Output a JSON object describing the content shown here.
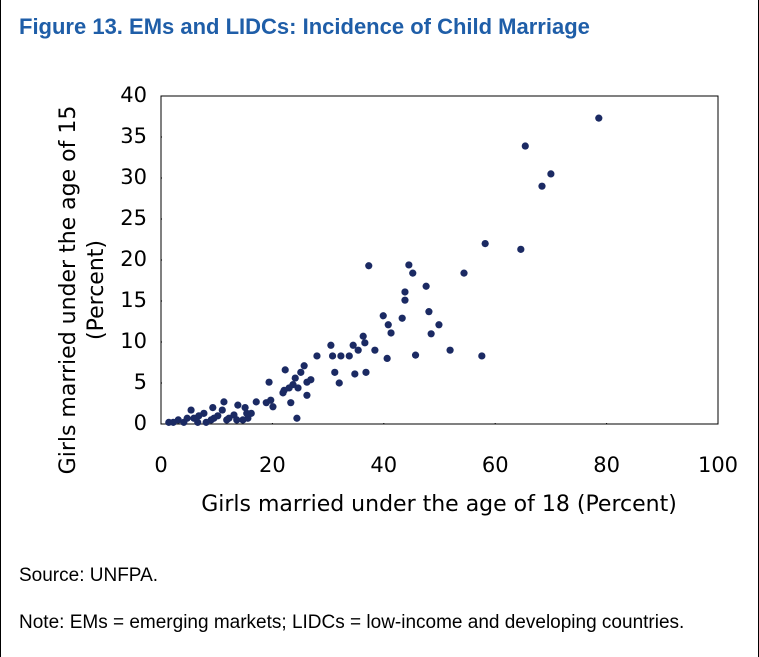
{
  "chart_data": {
    "type": "scatter",
    "title": "Figure 13. EMs and LIDCs: Incidence of Child Marriage",
    "xlabel": "Girls married under the age of 18 (Percent)",
    "ylabel": [
      "Girls married under the age of 15",
      "(Percent)"
    ],
    "source": "Source: UNFPA.",
    "note": "Note: EMs = emerging markets; LIDCs = low-income and developing countries.",
    "color": "#1b2a63",
    "xlim": [
      0,
      100
    ],
    "xticks": [
      0,
      20,
      40,
      60,
      80,
      100
    ],
    "ylim": [
      0,
      40
    ],
    "yticks": [
      0,
      5,
      10,
      15,
      20,
      25,
      30,
      35,
      40
    ],
    "grid": false,
    "x": [
      78.6,
      65.4,
      70.0,
      68.4,
      58.2,
      64.6,
      54.4,
      57.6,
      51.9,
      49.9,
      48.5,
      48.1,
      47.6,
      45.7,
      44.5,
      45.2,
      43.8,
      43.8,
      43.3,
      40.8,
      41.3,
      39.9,
      40.6,
      37.3,
      38.4,
      36.8,
      36.3,
      36.6,
      35.4,
      34.5,
      34.8,
      33.8,
      32.3,
      32.0,
      31.2,
      30.5,
      30.8,
      28.0,
      26.2,
      26.2,
      25.1,
      25.7,
      24.6,
      23.7,
      23.0,
      22.1,
      22.3,
      21.9,
      24.4,
      19.4,
      19.7,
      20.1,
      18.9,
      23.3,
      24.1,
      26.9,
      17.1,
      15.1,
      15.6,
      14.7,
      13.8,
      13.1,
      12.2,
      11.3,
      11.0,
      10.2,
      9.5,
      9.0,
      8.1,
      9.3,
      7.7,
      6.8,
      5.9,
      5.4,
      4.7,
      4.1,
      3.1,
      2.2,
      1.4,
      6.6,
      11.8,
      13.6,
      16.2,
      15.4
    ],
    "values": [
      37.3,
      33.9,
      30.5,
      29.0,
      22.0,
      21.3,
      18.4,
      8.3,
      9.0,
      12.1,
      11.0,
      13.7,
      16.8,
      8.4,
      19.4,
      18.4,
      16.1,
      15.1,
      12.9,
      12.1,
      11.1,
      13.2,
      8.0,
      19.3,
      9.0,
      6.3,
      10.7,
      9.9,
      9.0,
      9.6,
      6.1,
      8.3,
      8.3,
      5.0,
      6.3,
      9.6,
      8.3,
      8.3,
      5.1,
      3.5,
      6.3,
      7.1,
      4.4,
      4.8,
      4.4,
      4.1,
      6.6,
      3.8,
      0.7,
      5.1,
      2.9,
      2.1,
      2.6,
      2.6,
      5.6,
      5.4,
      2.7,
      2.0,
      0.7,
      0.5,
      2.3,
      1.1,
      0.7,
      2.7,
      1.7,
      1.0,
      0.7,
      0.5,
      0.2,
      2.0,
      1.3,
      1.0,
      0.7,
      1.7,
      0.7,
      0.2,
      0.5,
      0.2,
      0.2,
      0.2,
      0.5,
      0.5,
      1.3,
      1.3
    ]
  }
}
